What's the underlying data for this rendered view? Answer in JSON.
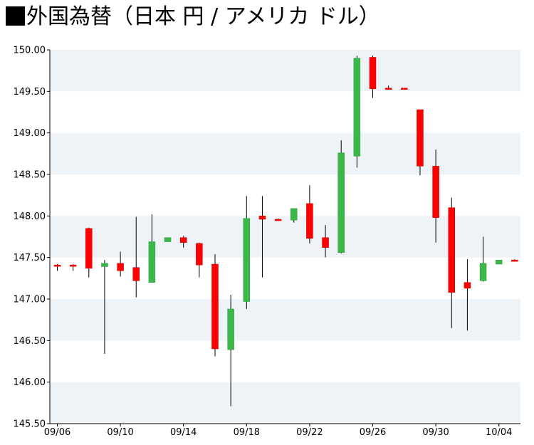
{
  "title": "外国為替（日本 円 / アメリカ ドル）",
  "colors": {
    "up": "#3cb84a",
    "up_stroke": "#2a9a37",
    "down": "#ff0000",
    "down_stroke": "#d00000",
    "band": "#eef3f8",
    "axis": "#000000"
  },
  "chart_data": {
    "type": "candlestick",
    "title": "外国為替（日本 円 / アメリカ ドル）",
    "xlabel": "",
    "ylabel": "",
    "ylim": [
      145.5,
      150.0
    ],
    "ytick_labels": [
      "145.50",
      "146.00",
      "146.50",
      "147.00",
      "147.50",
      "148.00",
      "148.50",
      "149.00",
      "149.50",
      "150.00"
    ],
    "xtick_labels": [
      "09/06",
      "09/10",
      "09/14",
      "09/18",
      "09/22",
      "09/26",
      "09/30",
      "10/04"
    ],
    "grid": "alternating horizontal bands",
    "legend": "none",
    "candles": [
      {
        "date": "09/06",
        "open": 147.41,
        "high": 147.42,
        "low": 147.34,
        "close": 147.4
      },
      {
        "date": "09/07",
        "open": 147.41,
        "high": 147.42,
        "low": 147.34,
        "close": 147.4
      },
      {
        "date": "09/08",
        "open": 147.85,
        "high": 147.86,
        "low": 147.26,
        "close": 147.37
      },
      {
        "date": "09/09",
        "open": 147.39,
        "high": 147.47,
        "low": 146.34,
        "close": 147.43
      },
      {
        "date": "09/10",
        "open": 147.43,
        "high": 147.57,
        "low": 147.27,
        "close": 147.34
      },
      {
        "date": "09/11",
        "open": 147.38,
        "high": 147.99,
        "low": 147.02,
        "close": 147.22
      },
      {
        "date": "09/12",
        "open": 147.2,
        "high": 148.02,
        "low": 147.2,
        "close": 147.69
      },
      {
        "date": "09/13",
        "open": 147.69,
        "high": 147.74,
        "low": 147.69,
        "close": 147.74
      },
      {
        "date": "09/14",
        "open": 147.74,
        "high": 147.76,
        "low": 147.62,
        "close": 147.68
      },
      {
        "date": "09/15",
        "open": 147.67,
        "high": 147.68,
        "low": 147.26,
        "close": 147.41
      },
      {
        "date": "09/16",
        "open": 147.42,
        "high": 147.54,
        "low": 146.31,
        "close": 146.4
      },
      {
        "date": "09/17",
        "open": 146.39,
        "high": 147.05,
        "low": 145.71,
        "close": 146.88
      },
      {
        "date": "09/18",
        "open": 146.97,
        "high": 148.24,
        "low": 146.88,
        "close": 147.97
      },
      {
        "date": "09/19",
        "open": 148.0,
        "high": 148.24,
        "low": 147.26,
        "close": 147.96
      },
      {
        "date": "09/20",
        "open": 147.96,
        "high": 147.97,
        "low": 147.94,
        "close": 147.95
      },
      {
        "date": "09/21",
        "open": 147.95,
        "high": 148.09,
        "low": 147.92,
        "close": 148.09
      },
      {
        "date": "09/22",
        "open": 148.15,
        "high": 148.37,
        "low": 147.67,
        "close": 147.73
      },
      {
        "date": "09/23",
        "open": 147.74,
        "high": 147.89,
        "low": 147.5,
        "close": 147.62
      },
      {
        "date": "09/24",
        "open": 147.56,
        "high": 148.91,
        "low": 147.55,
        "close": 148.76
      },
      {
        "date": "09/25",
        "open": 148.72,
        "high": 149.93,
        "low": 148.58,
        "close": 149.9
      },
      {
        "date": "09/26",
        "open": 149.91,
        "high": 149.93,
        "low": 149.42,
        "close": 149.53
      },
      {
        "date": "09/27",
        "open": 149.54,
        "high": 149.57,
        "low": 149.52,
        "close": 149.53
      },
      {
        "date": "09/28",
        "open": 149.54,
        "high": 149.54,
        "low": 149.52,
        "close": 149.53
      },
      {
        "date": "09/29",
        "open": 149.28,
        "high": 149.28,
        "low": 148.49,
        "close": 148.6
      },
      {
        "date": "09/30",
        "open": 148.6,
        "high": 148.8,
        "low": 147.68,
        "close": 147.98
      },
      {
        "date": "10/01",
        "open": 148.1,
        "high": 148.22,
        "low": 146.65,
        "close": 147.08
      },
      {
        "date": "10/02",
        "open": 147.2,
        "high": 147.48,
        "low": 146.62,
        "close": 147.13
      },
      {
        "date": "10/03",
        "open": 147.22,
        "high": 147.75,
        "low": 147.21,
        "close": 147.43
      },
      {
        "date": "10/04",
        "open": 147.42,
        "high": 147.47,
        "low": 147.42,
        "close": 147.47
      },
      {
        "date": "10/05",
        "open": 147.47,
        "high": 147.48,
        "low": 147.46,
        "close": 147.46
      }
    ]
  }
}
